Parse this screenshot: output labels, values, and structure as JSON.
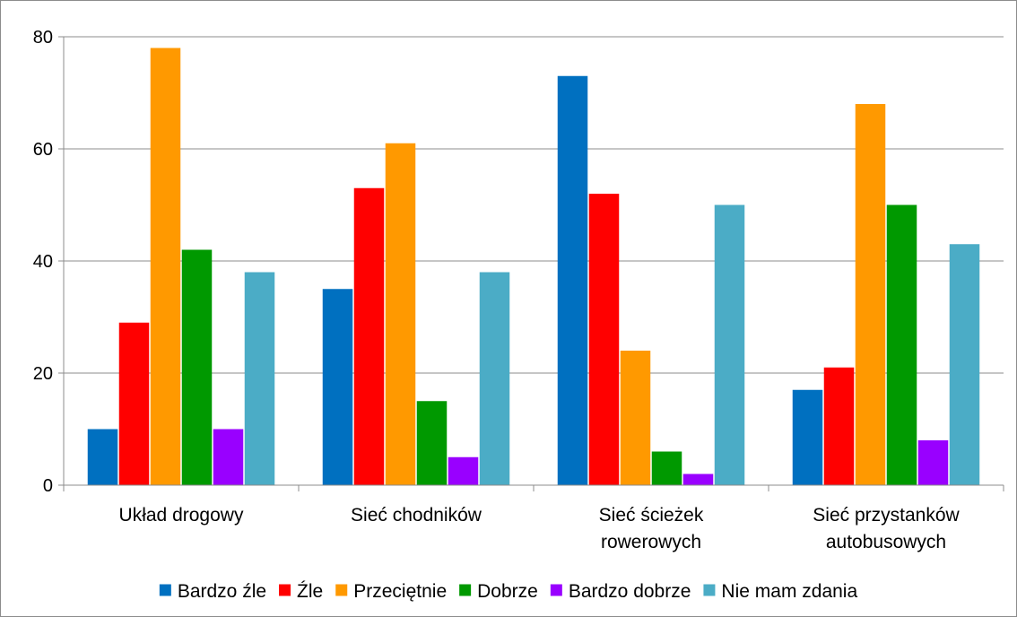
{
  "chart_data": {
    "type": "bar",
    "categories": [
      [
        "Układ drogowy"
      ],
      [
        "Sieć chodników"
      ],
      [
        "Sieć ścieżek",
        "rowerowych"
      ],
      [
        "Sieć przystanków",
        "autobusowych"
      ]
    ],
    "series": [
      {
        "name": "Bardzo źle",
        "color": "#0070c0",
        "values": [
          10,
          35,
          73,
          17
        ]
      },
      {
        "name": "Źle",
        "color": "#ff0000",
        "values": [
          29,
          53,
          52,
          21
        ]
      },
      {
        "name": "Przeciętnie",
        "color": "#ff9900",
        "values": [
          78,
          61,
          24,
          68
        ]
      },
      {
        "name": "Dobrze",
        "color": "#009900",
        "values": [
          42,
          15,
          6,
          50
        ]
      },
      {
        "name": "Bardzo dobrze",
        "color": "#9900ff",
        "values": [
          10,
          5,
          2,
          8
        ]
      },
      {
        "name": "Nie mam zdania",
        "color": "#4bacc6",
        "values": [
          38,
          38,
          50,
          43
        ]
      }
    ],
    "ylim": [
      0,
      80
    ],
    "yticks": [
      0,
      20,
      40,
      60,
      80
    ],
    "grid": true,
    "legend_position": "bottom"
  }
}
